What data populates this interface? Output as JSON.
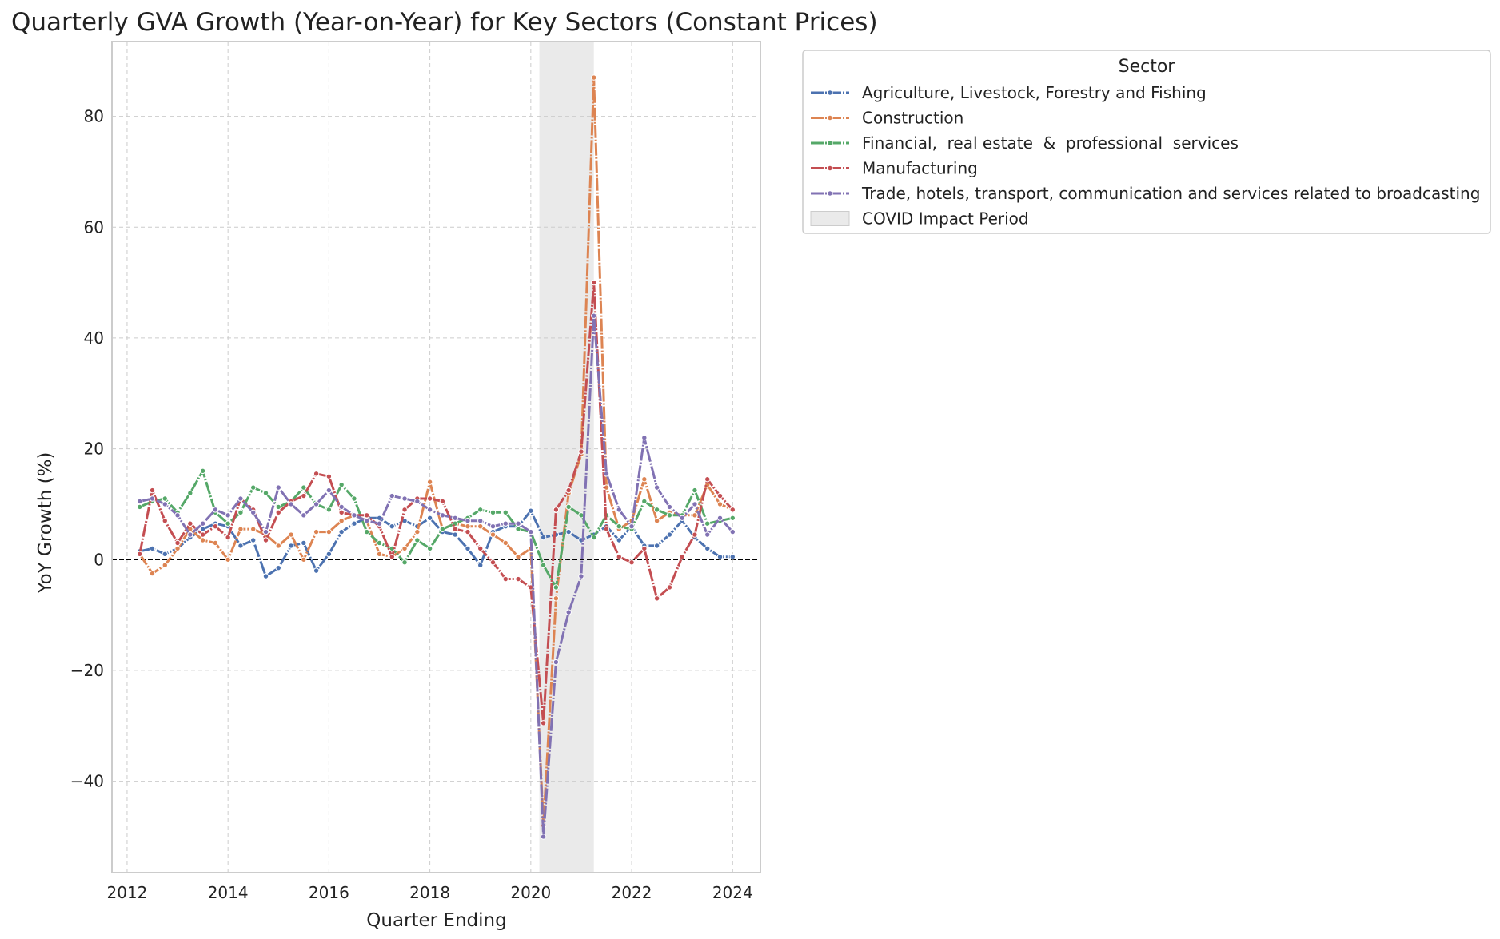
{
  "chart_data": {
    "type": "line",
    "title": "Quarterly GVA Growth (Year-on-Year) for Key Sectors (Constant Prices)",
    "xlabel": "Quarter Ending",
    "ylabel": "YoY Growth (%)",
    "xlim": [
      2011.7,
      2024.55
    ],
    "ylim": [
      -56.5,
      93.5
    ],
    "x_ticks": [
      2012,
      2014,
      2016,
      2018,
      2020,
      2022,
      2024
    ],
    "x_tick_labels": [
      "2012",
      "2014",
      "2016",
      "2018",
      "2020",
      "2022",
      "2024"
    ],
    "y_ticks": [
      -40,
      -20,
      0,
      20,
      40,
      60,
      80
    ],
    "y_tick_labels": [
      "−40",
      "−20",
      "0",
      "20",
      "40",
      "60",
      "80"
    ],
    "grid": true,
    "zero_line": true,
    "legend_title": "Sector",
    "legend_position": "outside-top-right",
    "shaded_region": {
      "label": "COVID Impact Period",
      "x_start": 2020.17,
      "x_end": 2021.25,
      "color": "#d9d9d9"
    },
    "x": [
      2012.25,
      2012.5,
      2012.75,
      2013.0,
      2013.25,
      2013.5,
      2013.75,
      2014.0,
      2014.25,
      2014.5,
      2014.75,
      2015.0,
      2015.25,
      2015.5,
      2015.75,
      2016.0,
      2016.25,
      2016.5,
      2016.75,
      2017.0,
      2017.25,
      2017.5,
      2017.75,
      2018.0,
      2018.25,
      2018.5,
      2018.75,
      2019.0,
      2019.25,
      2019.5,
      2019.75,
      2020.0,
      2020.25,
      2020.5,
      2020.75,
      2021.0,
      2021.25,
      2021.5,
      2021.75,
      2022.0,
      2022.25,
      2022.5,
      2022.75,
      2023.0,
      2023.25,
      2023.5,
      2023.75,
      2024.0
    ],
    "series": [
      {
        "name": "Agriculture, Livestock, Forestry and Fishing",
        "color": "#4c72b0",
        "values": [
          1.5,
          2,
          1,
          2,
          4,
          5.5,
          6.5,
          6,
          2.5,
          3.5,
          -3,
          -1.5,
          2.5,
          3,
          -2,
          1,
          5,
          6.5,
          7.5,
          7.5,
          6,
          7,
          6,
          7.5,
          5,
          4.5,
          2,
          -1,
          5,
          6,
          6,
          8.8,
          4,
          4.5,
          5,
          3.5,
          4.5,
          6,
          3.5,
          6,
          2.5,
          2.5,
          4.5,
          7,
          4,
          2,
          0.5,
          0.5
        ]
      },
      {
        "name": "Construction",
        "color": "#dd8452",
        "values": [
          1,
          -2.5,
          -1,
          2,
          5.5,
          3.5,
          3,
          0,
          5.5,
          5.5,
          4.5,
          2.5,
          4.5,
          0,
          5,
          5,
          7,
          8,
          7,
          1,
          0.5,
          2,
          5,
          14,
          5.5,
          6.5,
          6,
          6,
          4.5,
          3,
          0.5,
          2,
          -48,
          -7,
          12,
          19,
          87,
          13,
          5.5,
          7,
          14.5,
          7,
          8.5,
          8,
          8,
          13.5,
          10,
          9
        ]
      },
      {
        "name": "Financial,  real estate  &  professional  services",
        "color": "#55a868",
        "values": [
          9.5,
          10.5,
          11,
          8.5,
          12,
          16,
          8.5,
          6.5,
          8.5,
          13,
          12,
          9.5,
          10.5,
          13,
          10,
          9,
          13.5,
          11,
          5,
          3,
          2,
          -0.5,
          3.5,
          2,
          5.5,
          6.5,
          7.5,
          9,
          8.5,
          8.5,
          5.5,
          5,
          -1,
          -5,
          9.5,
          8,
          4,
          8,
          6,
          5.5,
          10.5,
          9,
          8,
          8,
          12.5,
          6.5,
          7,
          7.5
        ]
      },
      {
        "name": "Manufacturing",
        "color": "#c44e52",
        "values": [
          1,
          12.5,
          7,
          3,
          6.5,
          4.5,
          6,
          4,
          11,
          9,
          3.5,
          8.5,
          10.5,
          11.5,
          15.5,
          15,
          8.5,
          8,
          8,
          6,
          0.5,
          9,
          11,
          11,
          10.5,
          5.5,
          5,
          2,
          -0.5,
          -3.5,
          -3.5,
          -5,
          -29.5,
          9,
          12.5,
          19.5,
          50,
          5.5,
          0.5,
          -0.5,
          2,
          -7,
          -5,
          0.5,
          4.5,
          14.5,
          11.5,
          9
        ]
      },
      {
        "name": "Trade, hotels, transport, communication and services related to broadcasting",
        "color": "#8172b3",
        "values": [
          10.5,
          11,
          10,
          8,
          4.5,
          6.5,
          9,
          8,
          11,
          8.5,
          5,
          13,
          10,
          8,
          10,
          12.5,
          9.5,
          8,
          7,
          6.5,
          11.5,
          11,
          10.5,
          9,
          8,
          7.5,
          7,
          7,
          6,
          6.5,
          6.5,
          5,
          -50,
          -18.5,
          -9.5,
          -3,
          44,
          15.5,
          9,
          6,
          22,
          13,
          9.5,
          7.5,
          10,
          4.5,
          7.5,
          5
        ]
      }
    ]
  }
}
